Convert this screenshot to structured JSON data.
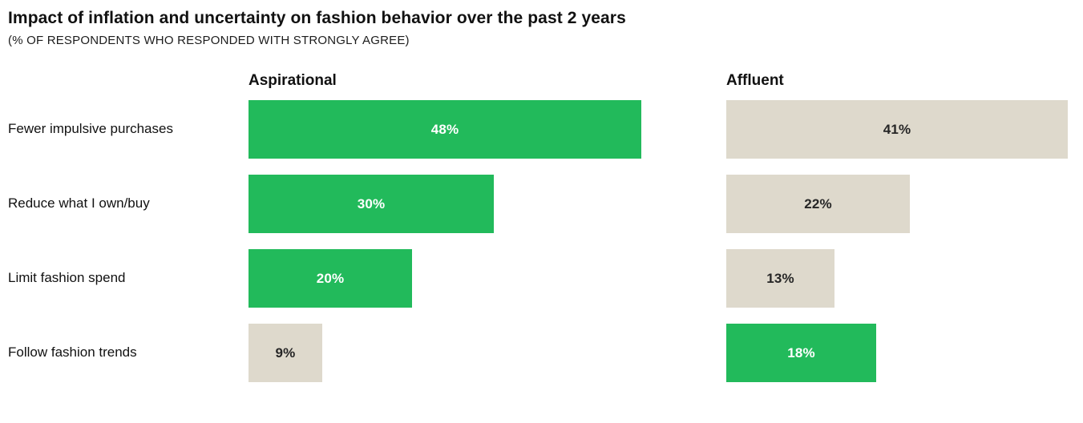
{
  "chart_data": {
    "type": "bar",
    "orientation": "horizontal",
    "title": "Impact of inflation and uncertainty on fashion behavior over the past 2 years",
    "subtitle": "(% OF RESPONDENTS WHO RESPONDED WITH STRONGLY AGREE)",
    "categories": [
      "Fewer impulsive purchases",
      "Reduce what I own/buy",
      "Limit fashion spend",
      "Follow fashion trends"
    ],
    "series": [
      {
        "name": "Aspirational",
        "values": [
          48,
          30,
          20,
          9
        ],
        "highlighted": [
          true,
          true,
          true,
          false
        ]
      },
      {
        "name": "Affluent",
        "values": [
          41,
          22,
          13,
          18
        ],
        "highlighted": [
          false,
          false,
          false,
          true
        ]
      }
    ],
    "value_suffix": "%",
    "colors": {
      "highlight_bar": "#22ba5b",
      "muted_bar": "#ded9cc",
      "value_on_highlight": "#ffffff",
      "value_on_muted": "#262626"
    },
    "legend_position": "none",
    "grid": false,
    "axis_ticks": "none"
  }
}
